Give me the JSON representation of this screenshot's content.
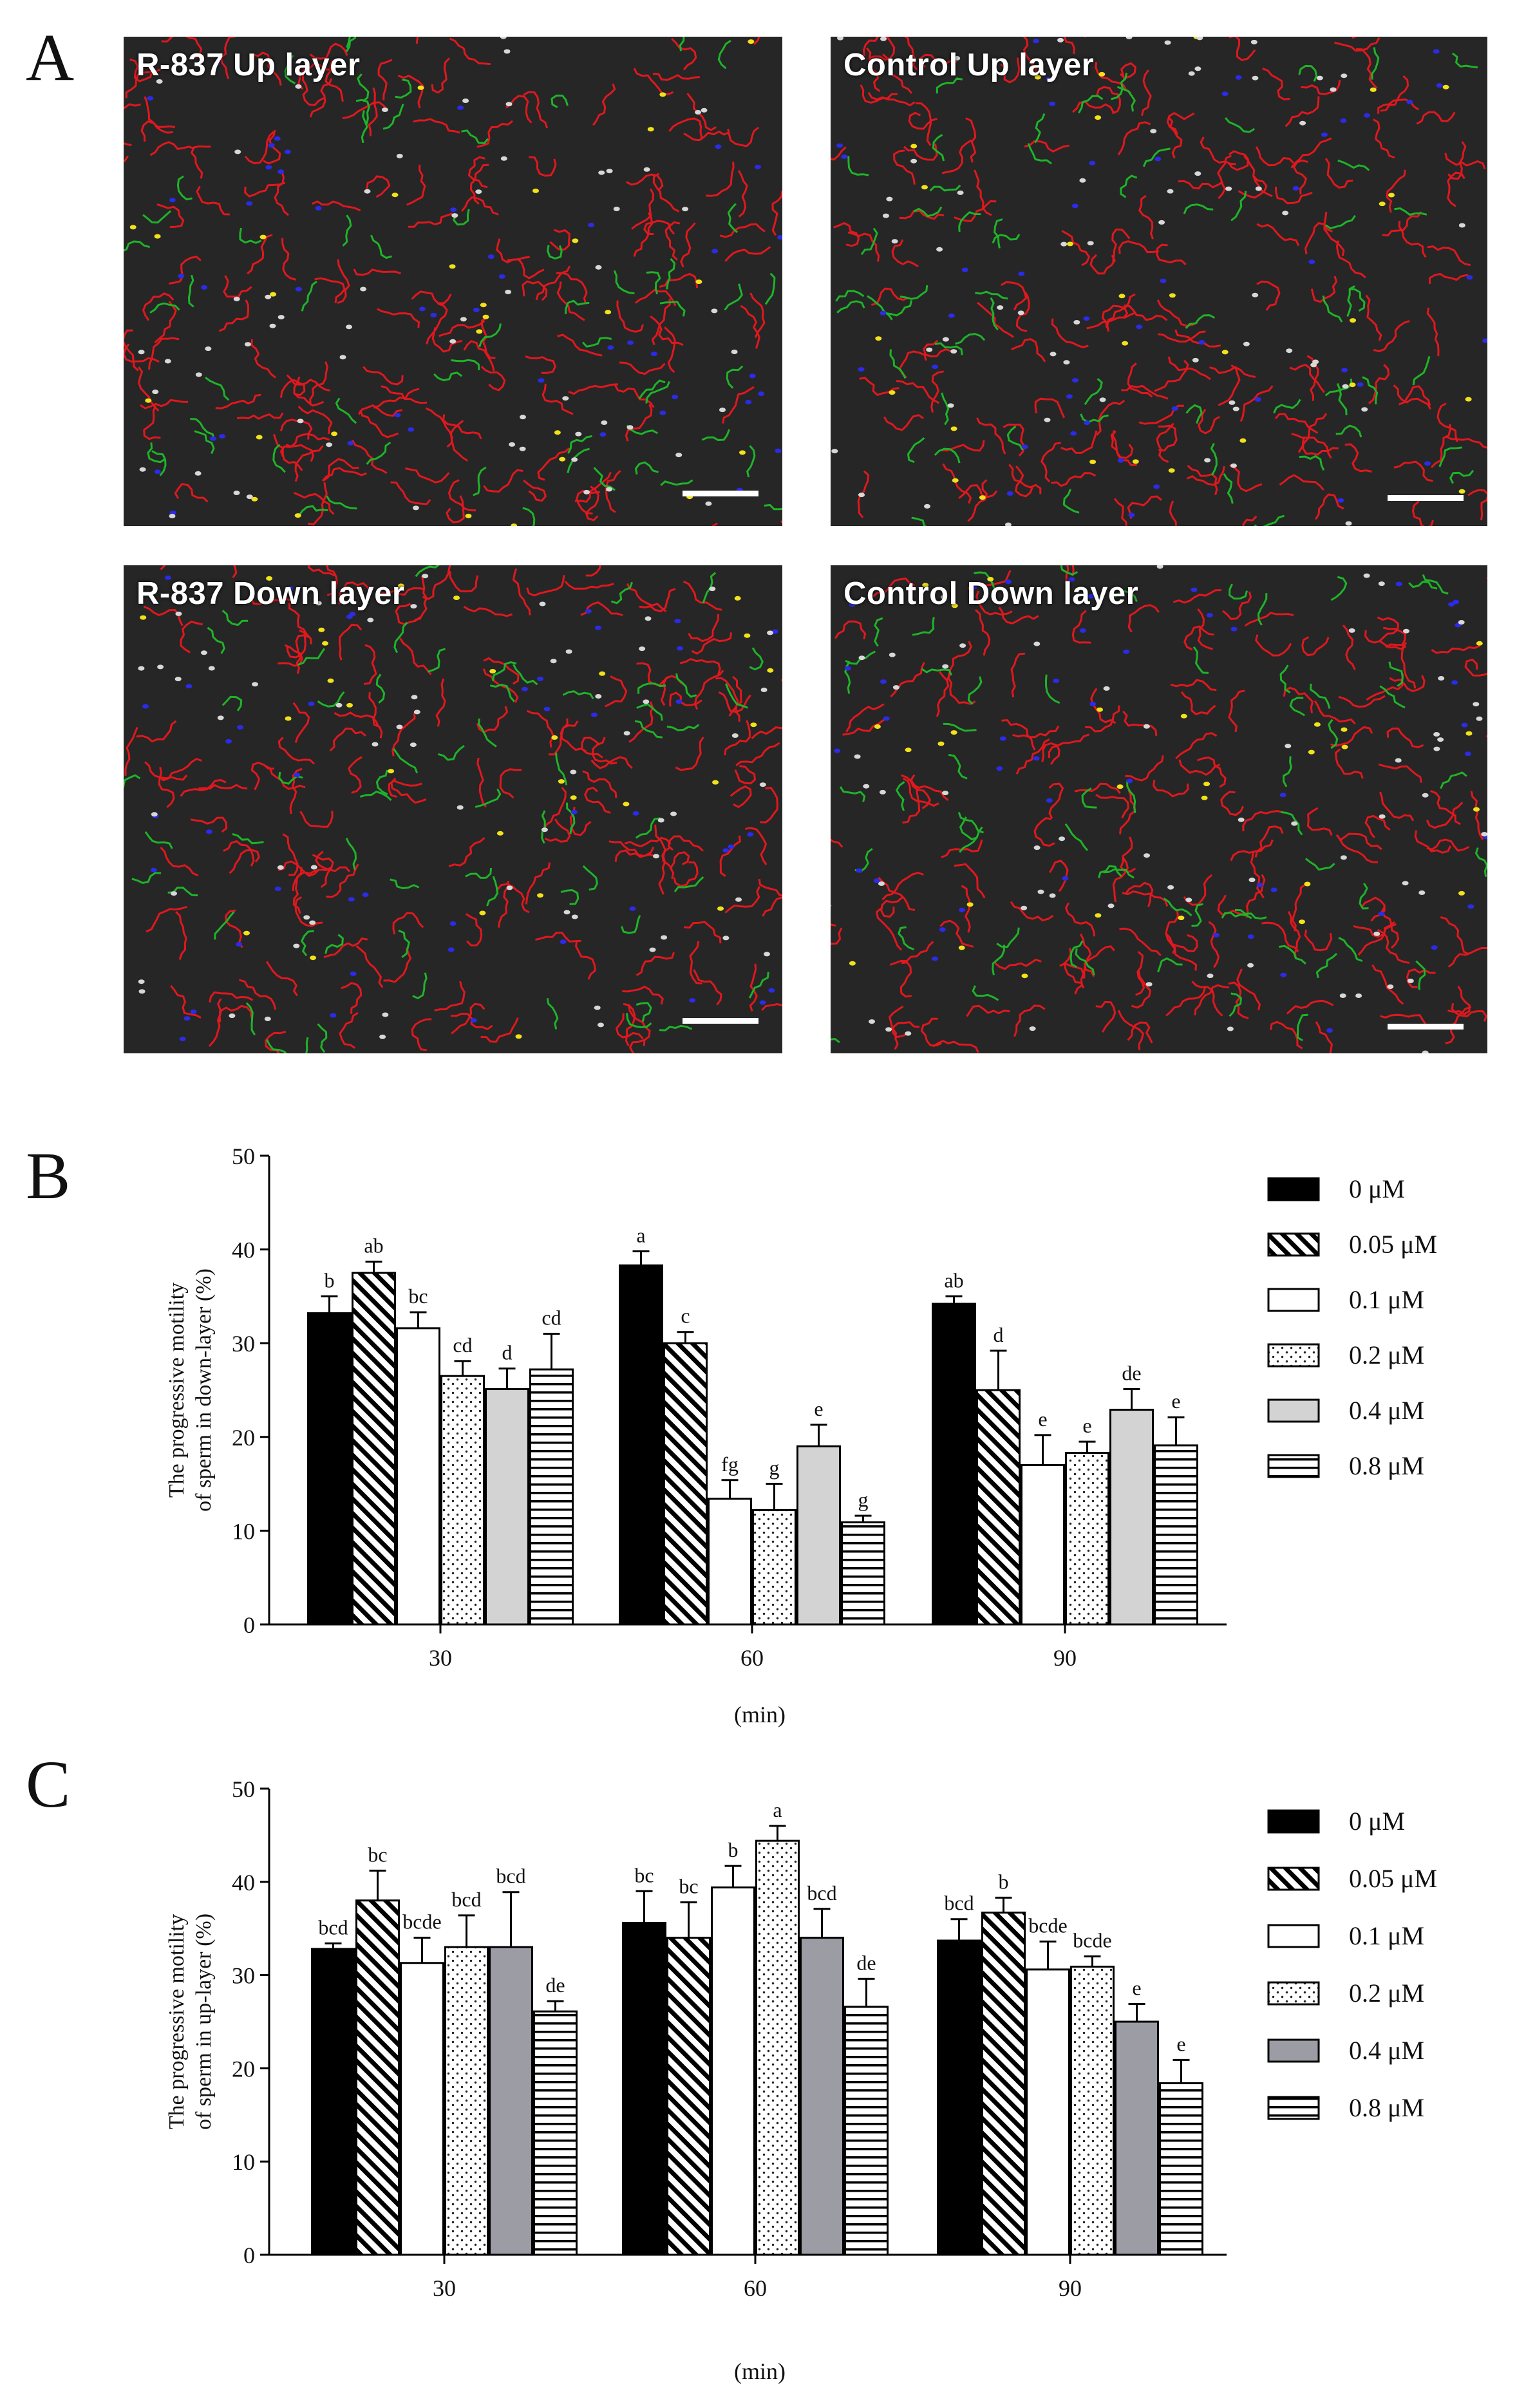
{
  "panels": {
    "a": "A",
    "b": "B",
    "c": "C"
  },
  "micrographs": [
    {
      "label": "R-837 Up layer"
    },
    {
      "label": "Control Up layer"
    },
    {
      "label": "R-837 Down layer"
    },
    {
      "label": "Control Down layer"
    }
  ],
  "colors": {
    "track_red": "#e0181e",
    "track_green": "#1fb32a",
    "dot_blue": "#2b2be8",
    "dot_yellow": "#f2e21a",
    "dot_white": "#d8d8d8",
    "micro_bg": "#262626"
  },
  "chart_data": [
    {
      "type": "bar",
      "panel": "B",
      "ylabel": "The progressive motility of sperm in down-layer (%)",
      "xlabel": "(min)",
      "ylim": [
        0,
        50
      ],
      "yticks": [
        0,
        10,
        20,
        30,
        40,
        50
      ],
      "categories": [
        "30",
        "60",
        "90"
      ],
      "legend_position": "right",
      "series": [
        {
          "name": "0 μM",
          "pattern": "solid-black",
          "values": [
            33.2,
            38.3,
            34.2
          ],
          "errors": [
            1.8,
            1.5,
            0.8
          ],
          "letters": [
            "b",
            "a",
            "ab"
          ]
        },
        {
          "name": "0.05 μM",
          "pattern": "diagonal-hatch",
          "values": [
            37.5,
            30.0,
            25.0
          ],
          "errors": [
            1.2,
            1.2,
            4.2
          ],
          "letters": [
            "ab",
            "c",
            "d"
          ]
        },
        {
          "name": "0.1 μM",
          "pattern": "white",
          "values": [
            31.6,
            13.4,
            17.0
          ],
          "errors": [
            1.7,
            2.0,
            3.2
          ],
          "letters": [
            "bc",
            "fg",
            "e"
          ]
        },
        {
          "name": "0.2 μM",
          "pattern": "dotted",
          "values": [
            26.5,
            12.2,
            18.3
          ],
          "errors": [
            1.6,
            2.8,
            1.2
          ],
          "letters": [
            "cd",
            "g",
            "e"
          ]
        },
        {
          "name": "0.4 μM",
          "pattern": "light-grey",
          "values": [
            25.1,
            19.0,
            22.9
          ],
          "errors": [
            2.2,
            2.3,
            2.2
          ],
          "letters": [
            "d",
            "e",
            "de"
          ]
        },
        {
          "name": "0.8 μM",
          "pattern": "horizontal-lines",
          "values": [
            27.2,
            10.9,
            19.1
          ],
          "errors": [
            3.8,
            0.7,
            3.0
          ],
          "letters": [
            "cd",
            "g",
            "e"
          ]
        }
      ]
    },
    {
      "type": "bar",
      "panel": "C",
      "ylabel": "The progressive motility of sperm in up-layer (%)",
      "xlabel": "(min)",
      "ylim": [
        0,
        50
      ],
      "yticks": [
        0,
        10,
        20,
        30,
        40,
        50
      ],
      "categories": [
        "30",
        "60",
        "90"
      ],
      "legend_position": "right",
      "series": [
        {
          "name": "0 μM",
          "pattern": "solid-black",
          "values": [
            32.8,
            35.6,
            33.7
          ],
          "errors": [
            0.6,
            3.4,
            2.3
          ],
          "letters": [
            "bcd",
            "bc",
            "bcd"
          ]
        },
        {
          "name": "0.05 μM",
          "pattern": "diagonal-hatch",
          "values": [
            38.0,
            34.0,
            36.7
          ],
          "errors": [
            3.2,
            3.8,
            1.6
          ],
          "letters": [
            "bc",
            "bc",
            "b"
          ]
        },
        {
          "name": "0.1 μM",
          "pattern": "white",
          "values": [
            31.3,
            39.4,
            30.6
          ],
          "errors": [
            2.7,
            2.3,
            3.0
          ],
          "letters": [
            "bcde",
            "b",
            "bcde"
          ]
        },
        {
          "name": "0.2 μM",
          "pattern": "dotted",
          "values": [
            33.0,
            44.4,
            30.9
          ],
          "errors": [
            3.4,
            1.6,
            1.1
          ],
          "letters": [
            "bcd",
            "a",
            "bcde"
          ]
        },
        {
          "name": "0.4 μM",
          "pattern": "dark-grey",
          "values": [
            33.0,
            34.0,
            25.0
          ],
          "errors": [
            5.9,
            3.1,
            1.9
          ],
          "letters": [
            "bcd",
            "bcd",
            "e"
          ]
        },
        {
          "name": "0.8 μM",
          "pattern": "horizontal-lines",
          "values": [
            26.1,
            26.6,
            18.4
          ],
          "errors": [
            1.1,
            3.0,
            2.5
          ],
          "letters": [
            "de",
            "de",
            "e"
          ]
        }
      ]
    }
  ]
}
